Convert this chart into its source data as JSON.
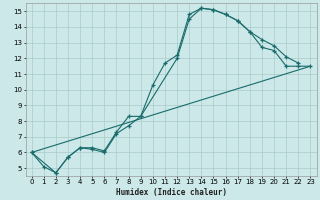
{
  "xlabel": "Humidex (Indice chaleur)",
  "background_color": "#cce8e8",
  "line_color": "#1a6b6b",
  "grid_color": "#aacccc",
  "xlim": [
    -0.5,
    23.5
  ],
  "ylim": [
    4.5,
    15.5
  ],
  "xticks": [
    0,
    1,
    2,
    3,
    4,
    5,
    6,
    7,
    8,
    9,
    10,
    11,
    12,
    13,
    14,
    15,
    16,
    17,
    18,
    19,
    20,
    21,
    22,
    23
  ],
  "yticks": [
    5,
    6,
    7,
    8,
    9,
    10,
    11,
    12,
    13,
    14,
    15
  ],
  "line1_x": [
    0,
    1,
    2,
    3,
    4,
    5,
    6,
    7,
    8,
    9,
    10,
    11,
    12,
    13,
    14,
    15,
    16,
    17,
    18,
    19,
    20,
    21,
    22
  ],
  "line1_y": [
    6.0,
    5.1,
    4.7,
    5.7,
    6.3,
    6.2,
    6.0,
    7.2,
    7.7,
    8.3,
    10.3,
    11.7,
    12.2,
    14.8,
    15.2,
    15.1,
    14.8,
    14.4,
    13.7,
    13.2,
    12.8,
    12.1,
    11.7
  ],
  "line2_x": [
    0,
    2,
    3,
    4,
    5,
    6,
    7,
    8,
    9,
    12,
    13,
    14,
    15,
    16,
    17,
    18,
    19,
    20,
    21,
    22,
    23
  ],
  "line2_y": [
    6.0,
    4.7,
    5.7,
    6.3,
    6.3,
    6.1,
    7.3,
    8.3,
    8.3,
    12.0,
    14.5,
    15.2,
    15.1,
    14.8,
    14.4,
    13.7,
    12.7,
    12.5,
    11.5,
    11.5,
    11.5
  ],
  "line3_x": [
    0,
    23
  ],
  "line3_y": [
    6.0,
    11.5
  ]
}
